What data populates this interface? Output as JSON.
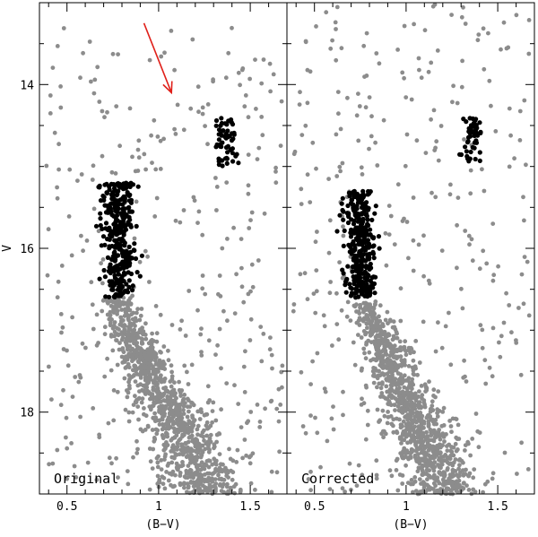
{
  "chart_data": [
    {
      "type": "scatter",
      "panel_label": "Original",
      "xlabel": "(B−V)",
      "ylabel": "V",
      "xlim": [
        0.35,
        1.7
      ],
      "ylim": [
        19.0,
        13.0
      ],
      "x_ticks": [
        0.5,
        1,
        1.5
      ],
      "x_tick_labels": [
        "0.5",
        "1",
        "1.5"
      ],
      "y_ticks": [
        14,
        16,
        18
      ],
      "y_tick_labels": [
        "14",
        "16",
        "18"
      ],
      "arrow": {
        "from": [
          0.92,
          13.25
        ],
        "to": [
          1.07,
          14.1
        ],
        "color": "#e0201a"
      },
      "series": [
        {
          "role": "field",
          "color": "#8c8c8c",
          "groups": [
            {
              "kind": "main_sequence",
              "count": 1050,
              "x_start": 0.76,
              "v_start": 16.6,
              "x_end": 1.25,
              "v_end": 19.0,
              "x_spread": 0.06
            },
            {
              "kind": "background",
              "count": 340,
              "x_range": [
                0.38,
                1.68
              ],
              "v_range": [
                13.3,
                19.0
              ]
            }
          ]
        },
        {
          "role": "selected",
          "color": "#000000",
          "groups": [
            {
              "kind": "red_clump",
              "count": 330,
              "x_center": 0.78,
              "x_spread": 0.045,
              "v_range": [
                15.2,
                16.6
              ]
            },
            {
              "kind": "giant_clump",
              "count": 55,
              "x_center": 1.36,
              "x_spread": 0.03,
              "v_range": [
                14.4,
                15.0
              ]
            }
          ]
        }
      ]
    },
    {
      "type": "scatter",
      "panel_label": "Corrected",
      "xlabel": "(B−V)",
      "ylabel": "",
      "xlim": [
        0.35,
        1.7
      ],
      "ylim": [
        19.0,
        13.0
      ],
      "x_ticks": [
        0.5,
        1,
        1.5
      ],
      "x_tick_labels": [
        "0.5",
        "1",
        "1.5"
      ],
      "y_ticks": [
        14,
        16,
        18
      ],
      "y_tick_labels": [
        "",
        "",
        ""
      ],
      "series": [
        {
          "role": "field",
          "color": "#8c8c8c",
          "groups": [
            {
              "kind": "main_sequence",
              "count": 1050,
              "x_start": 0.77,
              "v_start": 16.65,
              "x_end": 1.2,
              "v_end": 19.0,
              "x_spread": 0.055
            },
            {
              "kind": "background",
              "count": 340,
              "x_range": [
                0.38,
                1.68
              ],
              "v_range": [
                13.0,
                19.0
              ]
            }
          ]
        },
        {
          "role": "selected",
          "color": "#000000",
          "groups": [
            {
              "kind": "red_clump",
              "count": 330,
              "x_center": 0.75,
              "x_spread": 0.04,
              "v_range": [
                15.3,
                16.6
              ]
            },
            {
              "kind": "giant_clump",
              "count": 50,
              "x_center": 1.36,
              "x_spread": 0.03,
              "v_range": [
                14.4,
                14.95
              ]
            }
          ]
        }
      ]
    }
  ]
}
